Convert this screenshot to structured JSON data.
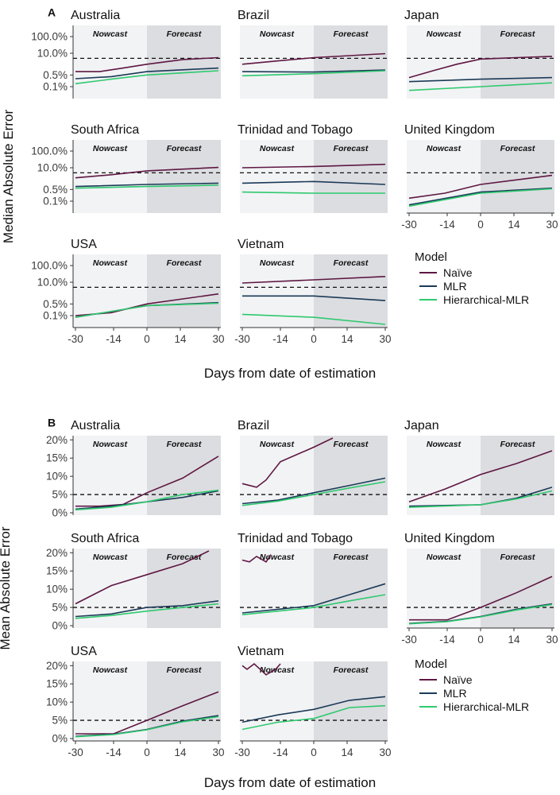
{
  "figure": {
    "xlabel": "Days from date of estimation",
    "x_ticks": [
      -30,
      -14,
      0,
      14,
      30
    ],
    "x_range": [
      -31,
      31
    ],
    "nowcast_label": "Nowcast",
    "forecast_label": "Forecast",
    "legend_title": "Model"
  },
  "models": [
    {
      "key": "naive",
      "name": "Naïve",
      "color": "#5e1742"
    },
    {
      "key": "mlr",
      "name": "MLR",
      "color": "#1b3a57"
    },
    {
      "key": "hmlr",
      "name": "Hierarchical-MLR",
      "color": "#2ec96e"
    }
  ],
  "chart_data": [
    {
      "panel_label": "A",
      "type": "line",
      "ylabel": "Median Absolute Error",
      "y_scale": "log",
      "y_ticks": [
        "100.0%",
        "10.0%",
        "0.5%",
        "0.1%"
      ],
      "y_range": [
        0.03,
        300
      ],
      "ref_line": 5,
      "countries": [
        {
          "name": "Australia",
          "naive": [
            [
              -30,
              0.8
            ],
            [
              -20,
              0.8
            ],
            [
              -10,
              1.3
            ],
            [
              0,
              2.2
            ],
            [
              15,
              4.2
            ],
            [
              30,
              5.5
            ]
          ],
          "mlr": [
            [
              -30,
              0.3
            ],
            [
              -15,
              0.4
            ],
            [
              0,
              0.8
            ],
            [
              30,
              1.3
            ]
          ],
          "hmlr": [
            [
              -30,
              0.15
            ],
            [
              -15,
              0.28
            ],
            [
              0,
              0.5
            ],
            [
              30,
              0.9
            ]
          ]
        },
        {
          "name": "Brazil",
          "naive": [
            [
              -30,
              2.2
            ],
            [
              -15,
              3.5
            ],
            [
              0,
              5.5
            ],
            [
              30,
              9.5
            ]
          ],
          "mlr": [
            [
              -30,
              0.8
            ],
            [
              0,
              0.75
            ],
            [
              30,
              1.0
            ]
          ],
          "hmlr": [
            [
              -30,
              0.45
            ],
            [
              0,
              0.6
            ],
            [
              30,
              0.9
            ]
          ]
        },
        {
          "name": "Japan",
          "naive": [
            [
              -30,
              0.35
            ],
            [
              -20,
              0.9
            ],
            [
              -10,
              2.2
            ],
            [
              0,
              4.5
            ],
            [
              15,
              5.5
            ],
            [
              30,
              6.5
            ]
          ],
          "mlr": [
            [
              -30,
              0.2
            ],
            [
              0,
              0.28
            ],
            [
              30,
              0.35
            ]
          ],
          "hmlr": [
            [
              -30,
              0.06
            ],
            [
              0,
              0.1
            ],
            [
              30,
              0.17
            ]
          ]
        },
        {
          "name": "South Africa",
          "naive": [
            [
              -30,
              2.5
            ],
            [
              -15,
              3.8
            ],
            [
              0,
              6.5
            ],
            [
              30,
              10.5
            ]
          ],
          "mlr": [
            [
              -30,
              0.75
            ],
            [
              0,
              1.0
            ],
            [
              30,
              1.2
            ]
          ],
          "hmlr": [
            [
              -30,
              0.6
            ],
            [
              0,
              0.75
            ],
            [
              30,
              0.9
            ]
          ]
        },
        {
          "name": "Trinidad and Tobago",
          "naive": [
            [
              -30,
              10
            ],
            [
              0,
              12
            ],
            [
              30,
              16
            ]
          ],
          "mlr": [
            [
              -30,
              1.2
            ],
            [
              0,
              1.5
            ],
            [
              30,
              1.0
            ]
          ],
          "hmlr": [
            [
              -30,
              0.35
            ],
            [
              0,
              0.3
            ],
            [
              30,
              0.3
            ]
          ]
        },
        {
          "name": "United Kingdom",
          "naive": [
            [
              -30,
              0.15
            ],
            [
              -15,
              0.3
            ],
            [
              0,
              1.0
            ],
            [
              30,
              3.5
            ]
          ],
          "mlr": [
            [
              -30,
              0.06
            ],
            [
              0,
              0.35
            ],
            [
              30,
              0.6
            ]
          ],
          "hmlr": [
            [
              -30,
              0.05
            ],
            [
              0,
              0.3
            ],
            [
              30,
              0.55
            ]
          ]
        },
        {
          "name": "USA",
          "naive": [
            [
              -30,
              0.1
            ],
            [
              -15,
              0.15
            ],
            [
              0,
              0.5
            ],
            [
              30,
              2.0
            ]
          ],
          "mlr": [
            [
              -30,
              0.08
            ],
            [
              0,
              0.4
            ],
            [
              30,
              0.6
            ]
          ],
          "hmlr": [
            [
              -30,
              0.08
            ],
            [
              0,
              0.4
            ],
            [
              30,
              0.55
            ]
          ]
        },
        {
          "name": "Vietnam",
          "naive": [
            [
              -30,
              9
            ],
            [
              0,
              14
            ],
            [
              30,
              22
            ]
          ],
          "mlr": [
            [
              -30,
              1.5
            ],
            [
              0,
              1.5
            ],
            [
              30,
              0.8
            ]
          ],
          "hmlr": [
            [
              -30,
              0.12
            ],
            [
              0,
              0.08
            ],
            [
              30,
              0.03
            ]
          ]
        }
      ]
    },
    {
      "panel_label": "B",
      "type": "line",
      "ylabel": "Mean Absolute Error",
      "y_scale": "linear",
      "y_ticks": [
        "20%",
        "15%",
        "10%",
        "5%",
        "0%"
      ],
      "y_range": [
        0,
        20.5
      ],
      "ref_line": 5,
      "countries": [
        {
          "name": "Australia",
          "naive": [
            [
              -30,
              1.8
            ],
            [
              -20,
              1.8
            ],
            [
              -10,
              2.3
            ],
            [
              0,
              5.5
            ],
            [
              15,
              9.5
            ],
            [
              30,
              15.5
            ]
          ],
          "mlr": [
            [
              -30,
              1.0
            ],
            [
              -15,
              1.8
            ],
            [
              0,
              3.0
            ],
            [
              15,
              4.2
            ],
            [
              30,
              6.0
            ]
          ],
          "hmlr": [
            [
              -30,
              0.8
            ],
            [
              -15,
              1.5
            ],
            [
              0,
              3.0
            ],
            [
              15,
              5.0
            ],
            [
              30,
              6.2
            ]
          ]
        },
        {
          "name": "Brazil",
          "naive": [
            [
              -30,
              8
            ],
            [
              -24,
              7
            ],
            [
              -20,
              9
            ],
            [
              -14,
              14
            ],
            [
              0,
              18
            ],
            [
              8,
              20.5
            ]
          ],
          "mlr": [
            [
              -30,
              2.5
            ],
            [
              -15,
              3.5
            ],
            [
              0,
              5.5
            ],
            [
              15,
              7.5
            ],
            [
              30,
              9.5
            ]
          ],
          "hmlr": [
            [
              -30,
              2.0
            ],
            [
              -15,
              3.2
            ],
            [
              0,
              5.0
            ],
            [
              15,
              6.8
            ],
            [
              30,
              8.5
            ]
          ]
        },
        {
          "name": "Japan",
          "naive": [
            [
              -30,
              3
            ],
            [
              -15,
              6.5
            ],
            [
              0,
              10.5
            ],
            [
              15,
              13.5
            ],
            [
              30,
              17
            ]
          ],
          "mlr": [
            [
              -30,
              1.8
            ],
            [
              0,
              2.2
            ],
            [
              15,
              4.0
            ],
            [
              30,
              7.0
            ]
          ],
          "hmlr": [
            [
              -30,
              1.5
            ],
            [
              0,
              2.2
            ],
            [
              15,
              3.8
            ],
            [
              30,
              6.0
            ]
          ]
        },
        {
          "name": "South Africa",
          "naive": [
            [
              -30,
              6
            ],
            [
              -15,
              11
            ],
            [
              0,
              14
            ],
            [
              15,
              17
            ],
            [
              26,
              20.5
            ]
          ],
          "mlr": [
            [
              -30,
              2.5
            ],
            [
              -15,
              3.2
            ],
            [
              0,
              5.0
            ],
            [
              15,
              5.5
            ],
            [
              30,
              6.8
            ]
          ],
          "hmlr": [
            [
              -30,
              2.0
            ],
            [
              -15,
              2.8
            ],
            [
              0,
              4.0
            ],
            [
              15,
              5.0
            ],
            [
              30,
              6.0
            ]
          ]
        },
        {
          "name": "Trinidad and Tobago",
          "naive": [
            [
              -30,
              18
            ],
            [
              -27,
              17.5
            ],
            [
              -24,
              19
            ],
            [
              -20,
              17.5
            ],
            [
              -18,
              19.5
            ]
          ],
          "mlr": [
            [
              -30,
              3.5
            ],
            [
              -15,
              4.5
            ],
            [
              0,
              5.5
            ],
            [
              15,
              8.5
            ],
            [
              30,
              11.5
            ]
          ],
          "hmlr": [
            [
              -30,
              3.0
            ],
            [
              -15,
              4.0
            ],
            [
              0,
              5.0
            ],
            [
              15,
              6.8
            ],
            [
              30,
              8.5
            ]
          ]
        },
        {
          "name": "United Kingdom",
          "naive": [
            [
              -30,
              1.6
            ],
            [
              -14,
              1.6
            ],
            [
              0,
              5.0
            ],
            [
              15,
              9.0
            ],
            [
              30,
              13.5
            ]
          ],
          "mlr": [
            [
              -30,
              0.6
            ],
            [
              -14,
              1.2
            ],
            [
              0,
              2.5
            ],
            [
              15,
              4.5
            ],
            [
              30,
              6.0
            ]
          ],
          "hmlr": [
            [
              -30,
              0.5
            ],
            [
              -14,
              1.1
            ],
            [
              0,
              2.4
            ],
            [
              15,
              4.3
            ],
            [
              30,
              5.8
            ]
          ]
        },
        {
          "name": "USA",
          "naive": [
            [
              -30,
              1.3
            ],
            [
              -14,
              1.3
            ],
            [
              0,
              5.0
            ],
            [
              15,
              9.0
            ],
            [
              30,
              12.8
            ]
          ],
          "mlr": [
            [
              -30,
              0.6
            ],
            [
              -14,
              1.2
            ],
            [
              0,
              2.5
            ],
            [
              15,
              4.8
            ],
            [
              30,
              6.3
            ]
          ],
          "hmlr": [
            [
              -30,
              0.5
            ],
            [
              -14,
              1.1
            ],
            [
              0,
              2.4
            ],
            [
              15,
              4.6
            ],
            [
              30,
              6.0
            ]
          ]
        },
        {
          "name": "Vietnam",
          "naive": [
            [
              -30,
              20
            ],
            [
              -28,
              19
            ],
            [
              -25,
              20.5
            ],
            [
              -20,
              17.5
            ],
            [
              -16,
              19
            ],
            [
              -14,
              20.5
            ]
          ],
          "mlr": [
            [
              -30,
              4.5
            ],
            [
              -15,
              6.5
            ],
            [
              0,
              8.0
            ],
            [
              15,
              10.5
            ],
            [
              30,
              11.5
            ]
          ],
          "hmlr": [
            [
              -30,
              2.5
            ],
            [
              -15,
              4.5
            ],
            [
              0,
              5.5
            ],
            [
              15,
              8.5
            ],
            [
              30,
              9.0
            ]
          ]
        }
      ]
    }
  ]
}
